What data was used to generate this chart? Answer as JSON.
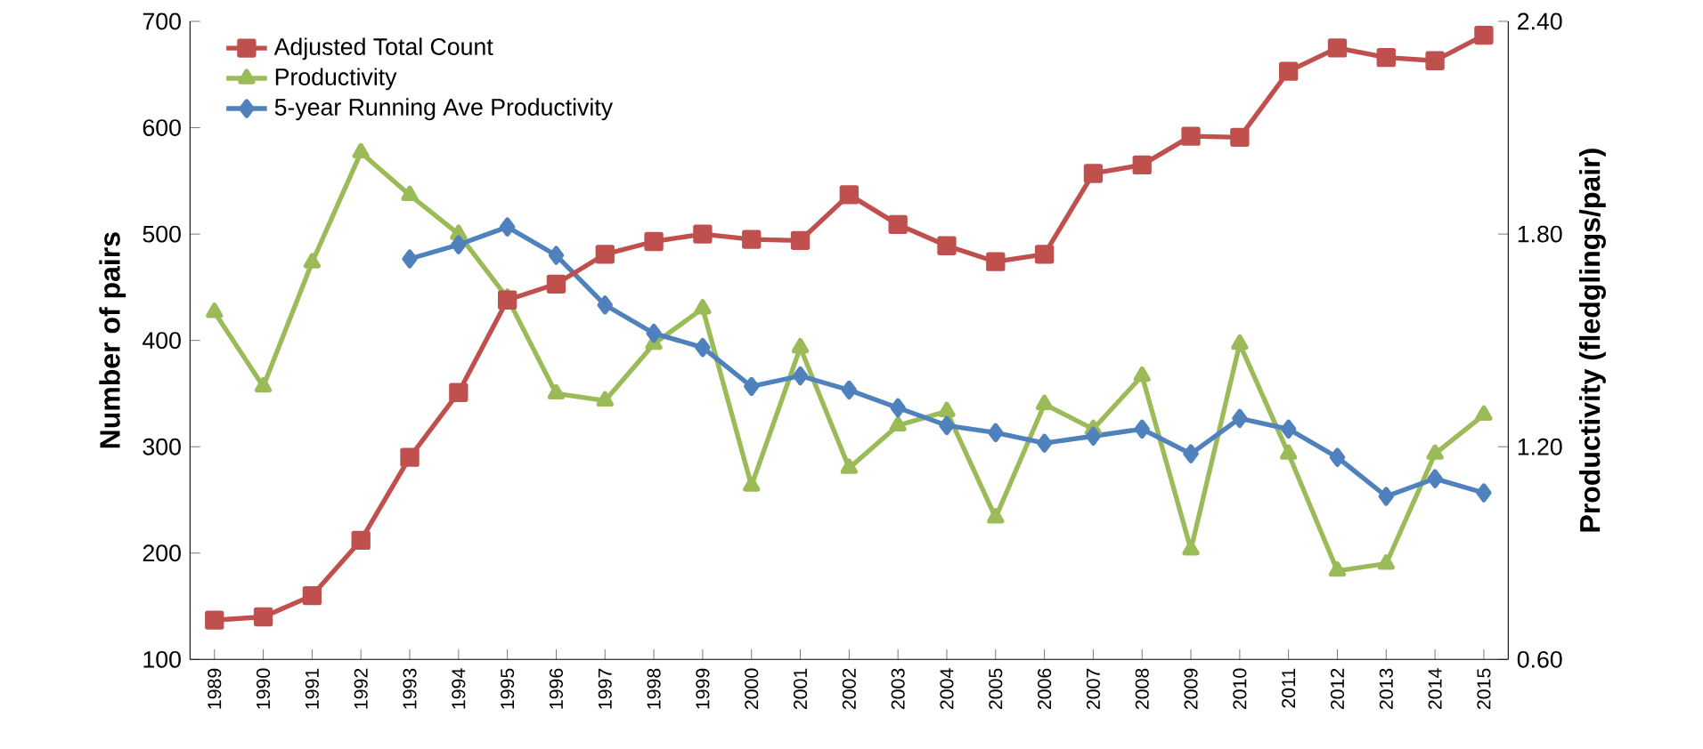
{
  "chart_data": {
    "type": "line",
    "categories": [
      "1989",
      "1990",
      "1991",
      "1992",
      "1993",
      "1994",
      "1995",
      "1996",
      "1997",
      "1998",
      "1999",
      "2000",
      "2001",
      "2002",
      "2003",
      "2004",
      "2005",
      "2006",
      "2007",
      "2008",
      "2009",
      "2010",
      "2011",
      "2012",
      "2013",
      "2014",
      "2015"
    ],
    "ylabel": "Number of pairs",
    "y2label": "Productivity (fledglings/pair)",
    "ylim": [
      100,
      700
    ],
    "yticks": [
      100,
      200,
      300,
      400,
      500,
      600,
      700
    ],
    "y2lim": [
      0.6,
      2.4
    ],
    "y2ticks": [
      {
        "value": 0.6,
        "label": "0.60"
      },
      {
        "value": 1.2,
        "label": "1.20"
      },
      {
        "value": 1.8,
        "label": "1.80"
      },
      {
        "value": 2.4,
        "label": "2.40"
      }
    ],
    "legend": "top left",
    "grid": false,
    "series": [
      {
        "name": "Adjusted Total Count",
        "color": "#c0504d",
        "marker": "square",
        "values": [
          137,
          140,
          160,
          212,
          290,
          351,
          438,
          453,
          481,
          493,
          500,
          495,
          494,
          537,
          509,
          489,
          474,
          481,
          557,
          565,
          592,
          591,
          653,
          675,
          666,
          663,
          687
        ]
      },
      {
        "name": "Productivity",
        "color": "#9bbb59",
        "marker": "triangle",
        "axis": "y2",
        "values": [
          1.58,
          1.37,
          1.72,
          2.03,
          1.91,
          1.8,
          1.62,
          1.35,
          1.33,
          1.49,
          1.59,
          1.09,
          1.48,
          1.14,
          1.26,
          1.3,
          1.0,
          1.32,
          1.25,
          1.4,
          0.91,
          1.49,
          1.18,
          0.85,
          0.87,
          1.18,
          1.29
        ]
      },
      {
        "name": "5-year Running Ave Productivity",
        "color": "#4f81bd",
        "marker": "diamond",
        "axis": "y2",
        "values": [
          null,
          null,
          null,
          null,
          1.73,
          1.77,
          1.82,
          1.74,
          1.6,
          1.52,
          1.48,
          1.37,
          1.4,
          1.36,
          1.31,
          1.26,
          1.24,
          1.21,
          1.23,
          1.25,
          1.18,
          1.28,
          1.25,
          1.17,
          1.06,
          1.11,
          1.07
        ]
      }
    ]
  }
}
